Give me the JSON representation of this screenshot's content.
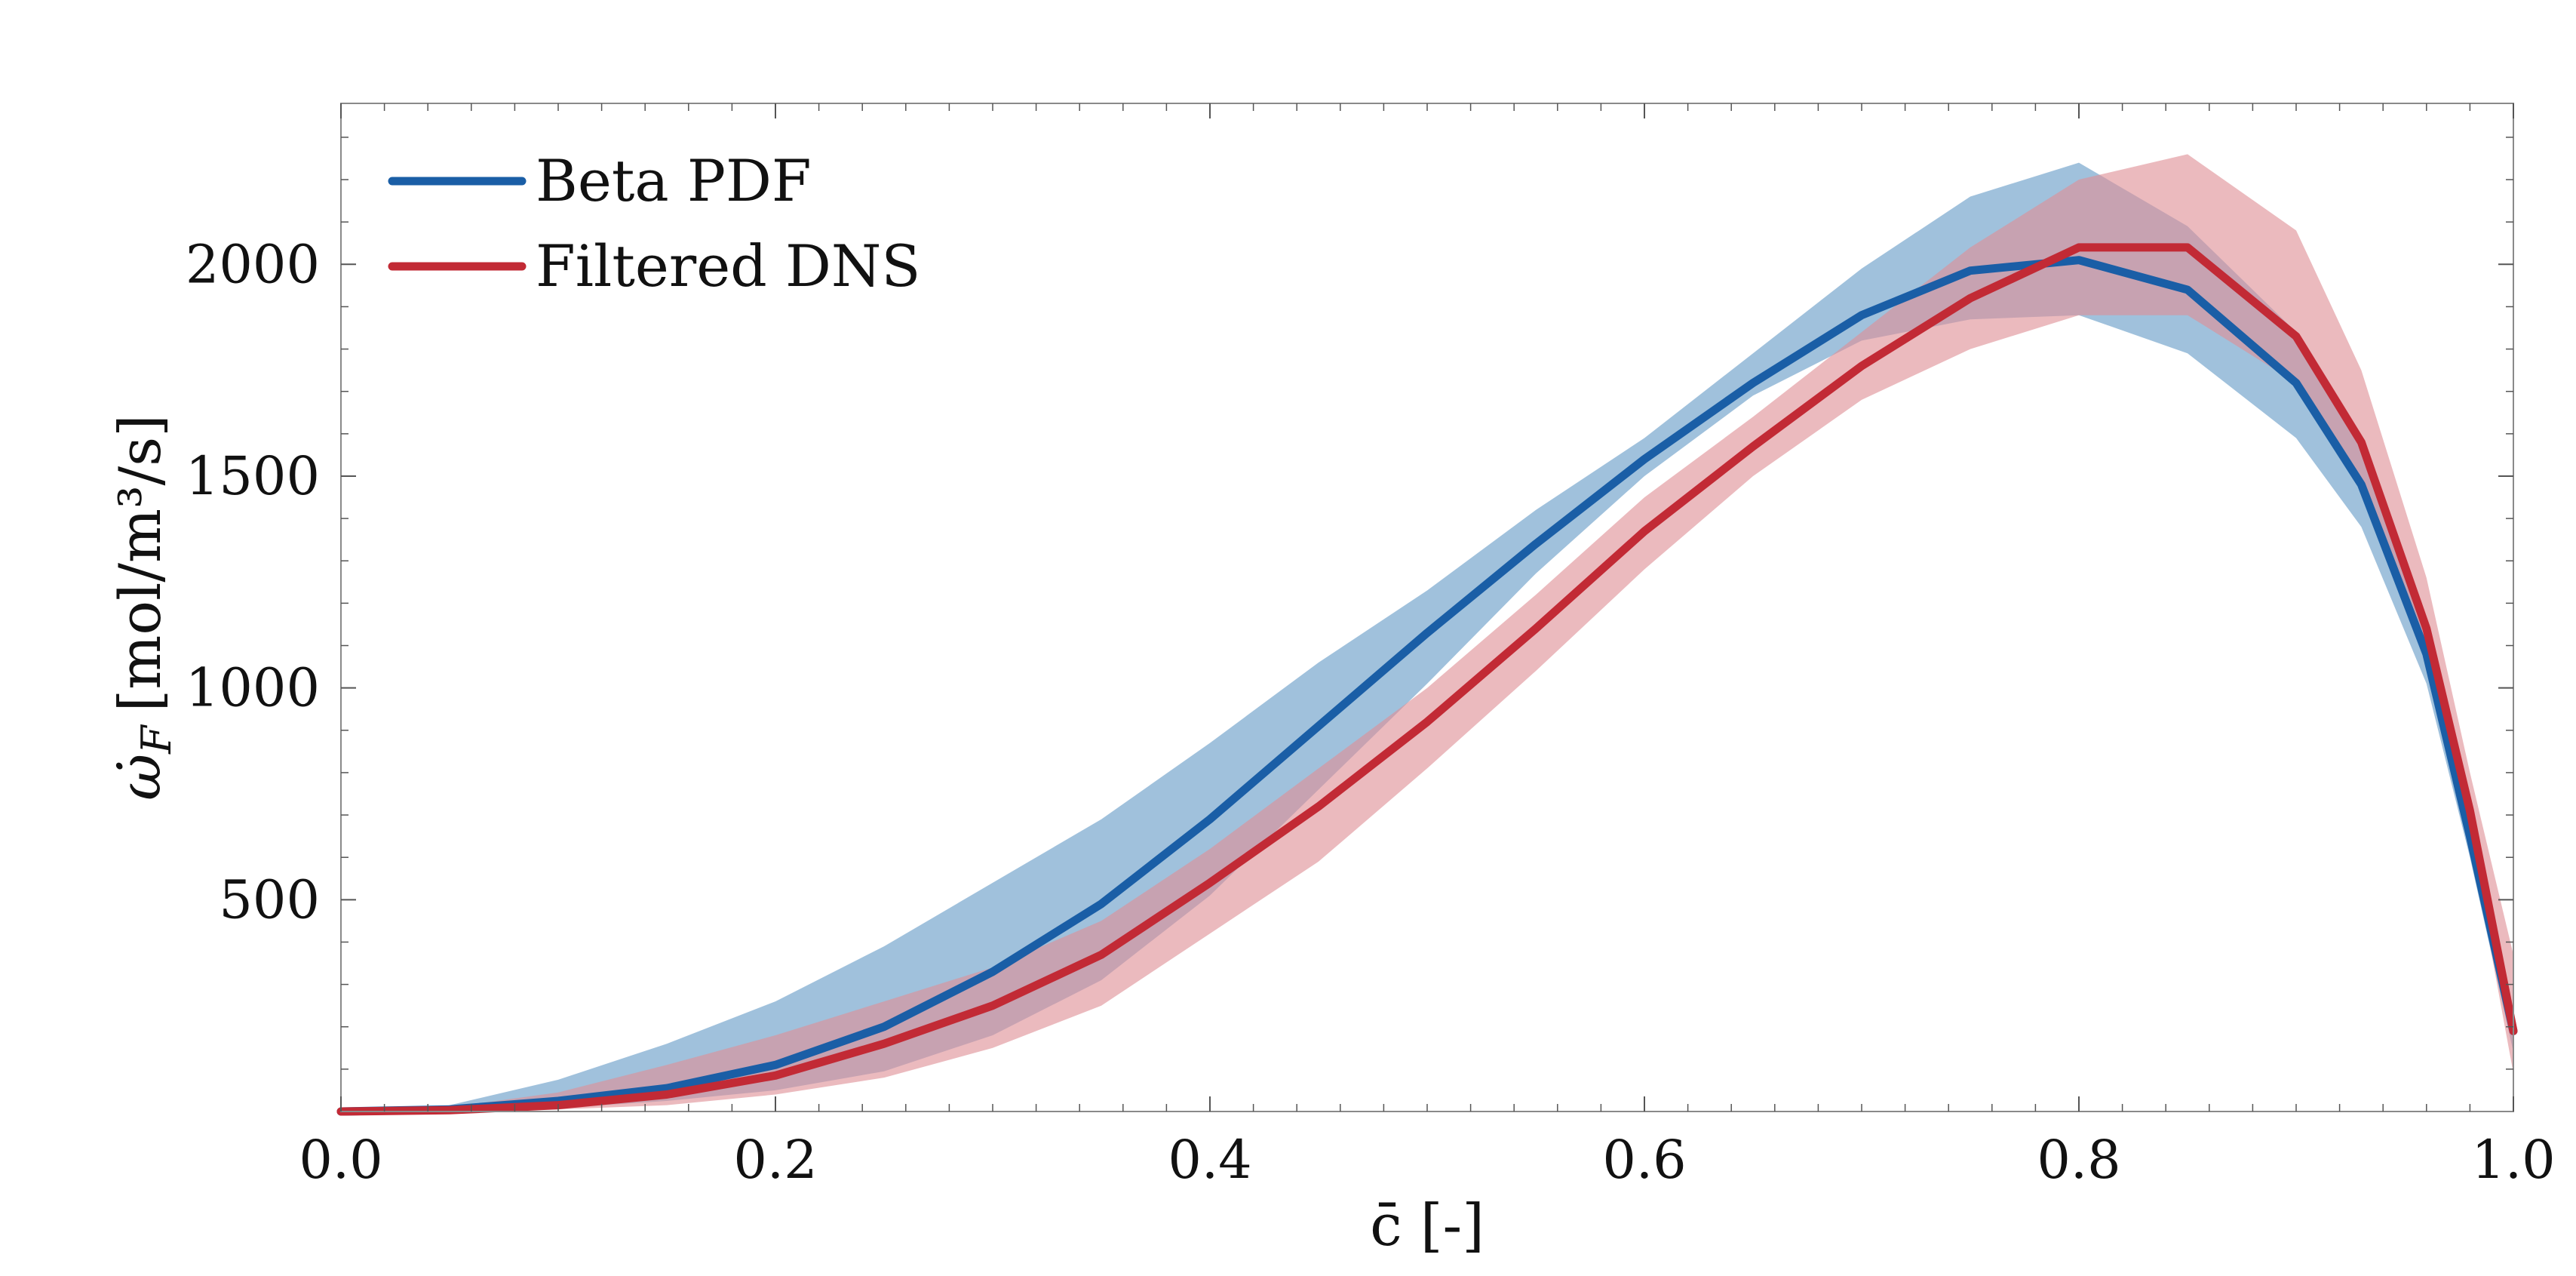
{
  "colors": {
    "beta": "#1a5ea6",
    "beta_band": "#8fb6d6",
    "dns": "#c22a35",
    "dns_band": "#de8f96",
    "overlap_note": "band overlap renders purple/mauve"
  },
  "chart_data": {
    "type": "line",
    "xlabel": "c̄ [-]",
    "ylabel_main": "ω̇",
    "ylabel_sub": "F",
    "ylabel_units": "[mol/m³/s]",
    "xlim": [
      0.0,
      1.0
    ],
    "ylim": [
      0,
      2380
    ],
    "xticks": [
      0.0,
      0.2,
      0.4,
      0.6,
      0.8,
      1.0
    ],
    "xtick_labels": [
      "0.0",
      "0.2",
      "0.4",
      "0.6",
      "0.8",
      "1.0"
    ],
    "yticks": [
      500,
      1000,
      1500,
      2000
    ],
    "ytick_labels": [
      "500",
      "1000",
      "1500",
      "2000"
    ],
    "legend_position": "top-left",
    "series": [
      {
        "name": "Beta PDF",
        "color": "#1a5ea6",
        "band_color": "#8fb6d6",
        "x": [
          0.0,
          0.05,
          0.1,
          0.15,
          0.2,
          0.25,
          0.3,
          0.35,
          0.4,
          0.45,
          0.5,
          0.55,
          0.6,
          0.65,
          0.7,
          0.75,
          0.8,
          0.85,
          0.9,
          0.93,
          0.96,
          0.98,
          1.0
        ],
        "values": [
          0,
          5,
          25,
          55,
          110,
          200,
          330,
          490,
          690,
          910,
          1130,
          1340,
          1540,
          1720,
          1880,
          1985,
          2010,
          1940,
          1720,
          1480,
          1080,
          650,
          190
        ],
        "band_upper": [
          0,
          15,
          75,
          160,
          260,
          390,
          540,
          690,
          870,
          1060,
          1230,
          1420,
          1590,
          1790,
          1990,
          2160,
          2240,
          2090,
          1840,
          1580,
          1150,
          700,
          240
        ],
        "band_lower": [
          0,
          2,
          8,
          25,
          50,
          95,
          180,
          310,
          510,
          760,
          1010,
          1270,
          1500,
          1690,
          1820,
          1870,
          1880,
          1790,
          1590,
          1380,
          1010,
          600,
          140
        ]
      },
      {
        "name": "Filtered DNS",
        "color": "#c22a35",
        "band_color": "#de8f96",
        "x": [
          0.0,
          0.05,
          0.1,
          0.15,
          0.2,
          0.25,
          0.3,
          0.35,
          0.4,
          0.45,
          0.5,
          0.55,
          0.6,
          0.65,
          0.7,
          0.75,
          0.8,
          0.85,
          0.9,
          0.93,
          0.96,
          0.98,
          1.0
        ],
        "values": [
          0,
          3,
          15,
          40,
          85,
          160,
          250,
          370,
          540,
          720,
          920,
          1140,
          1370,
          1570,
          1760,
          1920,
          2040,
          2040,
          1830,
          1580,
          1140,
          710,
          190
        ],
        "band_upper": [
          0,
          10,
          45,
          110,
          180,
          260,
          340,
          450,
          620,
          810,
          1000,
          1220,
          1450,
          1640,
          1840,
          2040,
          2200,
          2260,
          2080,
          1750,
          1260,
          800,
          370
        ],
        "band_lower": [
          0,
          1,
          5,
          15,
          40,
          80,
          150,
          250,
          420,
          590,
          810,
          1040,
          1280,
          1500,
          1680,
          1800,
          1880,
          1880,
          1720,
          1470,
          1060,
          650,
          90
        ]
      }
    ]
  }
}
